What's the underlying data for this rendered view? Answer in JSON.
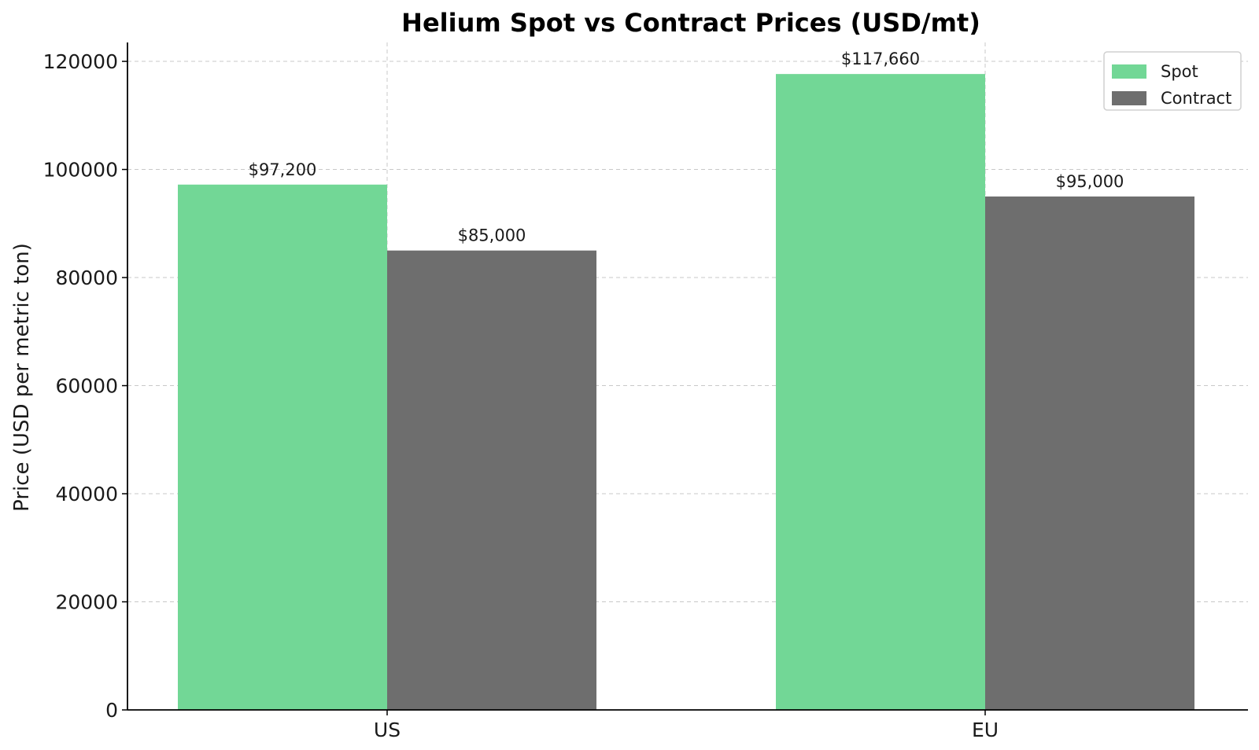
{
  "chart_data": {
    "type": "bar",
    "title": "Helium Spot vs Contract Prices (USD/mt)",
    "xlabel": "",
    "ylabel": "Price (USD per metric ton)",
    "categories": [
      "US",
      "EU"
    ],
    "series": [
      {
        "name": "Spot",
        "values": [
          97200,
          117660
        ],
        "labels": [
          "$97,200",
          "$117,660"
        ],
        "color": "#72d796"
      },
      {
        "name": "Contract",
        "values": [
          85000,
          95000
        ],
        "labels": [
          "$85,000",
          "$95,000"
        ],
        "color": "#6e6e6e"
      }
    ],
    "ylim": [
      0,
      123500
    ],
    "yticks": [
      0,
      20000,
      40000,
      60000,
      80000,
      100000,
      120000
    ],
    "grid": true,
    "legend_position": "top-right"
  }
}
